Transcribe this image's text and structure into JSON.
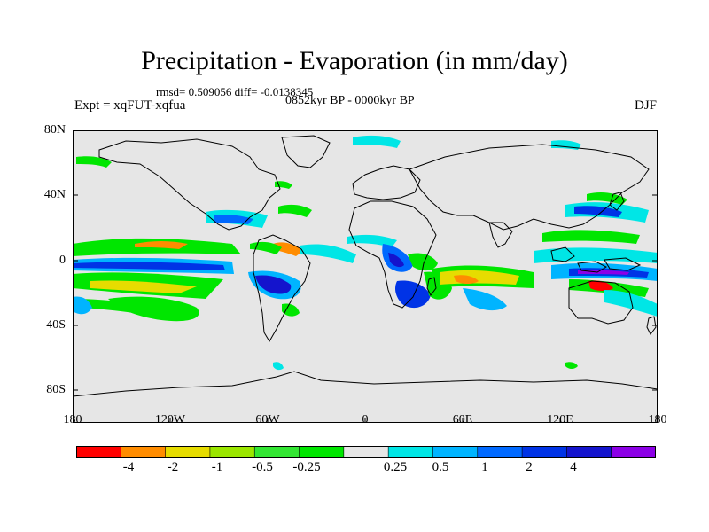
{
  "title": "Precipitation - Evaporation (in mm/day)",
  "stats": "rmsd= 0.509056 diff= -0.0138345",
  "period": "0852kyr BP - 0000kyr BP",
  "experiment": "Expt = xqFUT-xqfua",
  "season": "DJF",
  "map": {
    "background_color": "#e6e6e6",
    "lat_ticks": [
      "80N",
      "40N",
      "0",
      "40S",
      "80S"
    ],
    "lon_ticks": [
      "180",
      "120W",
      "60W",
      "0",
      "60E",
      "120E",
      "180"
    ]
  },
  "colorbar": {
    "colors": [
      "#ff0000",
      "#ff8c00",
      "#e6dc00",
      "#9be600",
      "#33e633",
      "#00e600",
      "#e6e6e6",
      "#00e6e6",
      "#00b4ff",
      "#0069ff",
      "#0033e6",
      "#1414cd",
      "#8c00e6"
    ],
    "labels": [
      "-4",
      "-2",
      "-1",
      "-0.5",
      "-0.25",
      "0.25",
      "0.5",
      "1",
      "2",
      "4"
    ]
  }
}
